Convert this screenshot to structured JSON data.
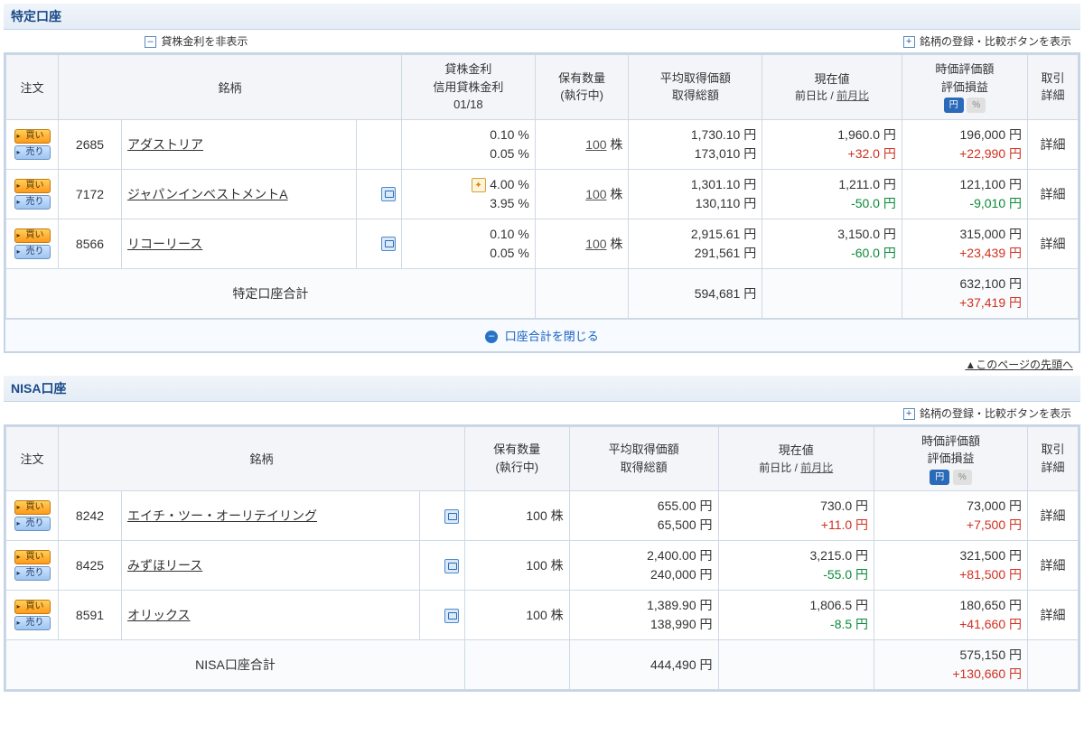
{
  "yen": "円",
  "shares_unit": "株",
  "btn_buy": "買い",
  "btn_sell": "売り",
  "detail": "詳細",
  "toggle_hide_interest": "貸株金利を非表示",
  "toggle_show_register": "銘柄の登録・比較ボタンを表示",
  "close_account_total": "口座合計を閉じる",
  "back_to_top": "▲このページの先頭へ",
  "yen_badge": "円",
  "pct_badge": "%",
  "headers": {
    "order": "注文",
    "name": "銘柄",
    "interest_l1": "貸株金利",
    "interest_l2": "信用貸株金利",
    "interest_l3": "01/18",
    "qty_l1": "保有数量",
    "qty_l2": "(執行中)",
    "avg_l1": "平均取得価額",
    "avg_l2": "取得総額",
    "price_l1": "現在値",
    "price_l2a": "前日比",
    "price_l2b": "前月比",
    "valuation_l1": "時価評価額",
    "valuation_l2": "評価損益",
    "detail_l1": "取引",
    "detail_l2": "詳細"
  },
  "tokutei": {
    "title": "特定口座",
    "subtotal_label": "特定口座合計",
    "subtotal_cost": "594,681 円",
    "subtotal_value": "632,100 円",
    "subtotal_pl": "+37,419 円",
    "subtotal_pl_class": "pos",
    "rows": [
      {
        "code": "2685",
        "name": "アダストリア",
        "has_cal": false,
        "has_fire": false,
        "rate1": "0.10 %",
        "rate2": "0.05 %",
        "qty": "100",
        "avg": "1,730.10 円",
        "cost": "173,010 円",
        "price": "1,960.0 円",
        "chg": "+32.0 円",
        "chg_class": "pos",
        "value": "196,000 円",
        "pl": "+22,990 円",
        "pl_class": "pos"
      },
      {
        "code": "7172",
        "name": "ジャパンインベストメントA",
        "has_cal": true,
        "has_fire": true,
        "rate1": "4.00 %",
        "rate2": "3.95 %",
        "qty": "100",
        "avg": "1,301.10 円",
        "cost": "130,110 円",
        "price": "1,211.0 円",
        "chg": "-50.0 円",
        "chg_class": "neg",
        "value": "121,100 円",
        "pl": "-9,010 円",
        "pl_class": "neg"
      },
      {
        "code": "8566",
        "name": "リコーリース",
        "has_cal": true,
        "has_fire": false,
        "rate1": "0.10 %",
        "rate2": "0.05 %",
        "qty": "100",
        "avg": "2,915.61 円",
        "cost": "291,561 円",
        "price": "3,150.0 円",
        "chg": "-60.0 円",
        "chg_class": "neg",
        "value": "315,000 円",
        "pl": "+23,439 円",
        "pl_class": "pos"
      }
    ]
  },
  "nisa": {
    "title": "NISA口座",
    "subtotal_label": "NISA口座合計",
    "subtotal_cost": "444,490 円",
    "subtotal_value": "575,150 円",
    "subtotal_pl": "+130,660 円",
    "subtotal_pl_class": "pos",
    "rows": [
      {
        "code": "8242",
        "name": "エイチ・ツー・オーリテイリング",
        "has_cal": true,
        "qty": "100 株",
        "avg": "655.00 円",
        "cost": "65,500 円",
        "price": "730.0 円",
        "chg": "+11.0 円",
        "chg_class": "pos",
        "value": "73,000 円",
        "pl": "+7,500 円",
        "pl_class": "pos"
      },
      {
        "code": "8425",
        "name": "みずほリース",
        "has_cal": true,
        "qty": "100 株",
        "avg": "2,400.00 円",
        "cost": "240,000 円",
        "price": "3,215.0 円",
        "chg": "-55.0 円",
        "chg_class": "neg",
        "value": "321,500 円",
        "pl": "+81,500 円",
        "pl_class": "pos"
      },
      {
        "code": "8591",
        "name": "オリックス",
        "has_cal": true,
        "qty": "100 株",
        "avg": "1,389.90 円",
        "cost": "138,990 円",
        "price": "1,806.5 円",
        "chg": "-8.5 円",
        "chg_class": "neg",
        "value": "180,650 円",
        "pl": "+41,660 円",
        "pl_class": "pos"
      }
    ]
  }
}
